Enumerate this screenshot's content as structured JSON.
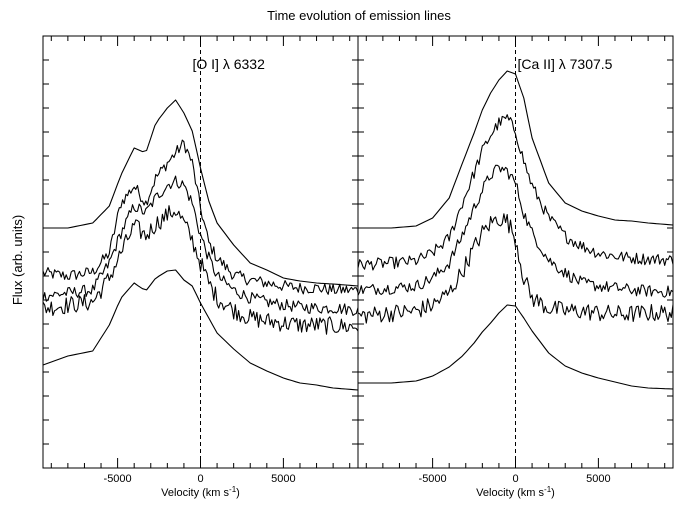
{
  "chart_data": {
    "type": "line",
    "title": "Time evolution of emission lines",
    "ylabel": "Flux (arb. units)",
    "xlabel_prefix": "Velocity (km s",
    "xlabel_sup": "-1",
    "xlabel_suffix": ")",
    "x_tick_values": [
      -5000,
      0,
      5000
    ],
    "x_tick_labels": [
      "-5000",
      "0",
      "5000"
    ],
    "grid": false,
    "panels": [
      {
        "annotation": "[O I] λ 6332",
        "xlim": [
          -9500,
          9500
        ],
        "marker_x": 0,
        "series": [
          {
            "x": [
              -9500,
              -8000,
              -6500,
              -5500,
              -4800,
              -4000,
              -3300,
              -2700,
              -2000,
              -1500,
              -1000,
              -500,
              0,
              500,
              1000,
              2000,
              3000,
              4000,
              5000,
              6000,
              7000,
              8000,
              9500
            ],
            "y": [
              240,
              240,
              245,
              262,
              293,
              320,
              315,
              345,
              360,
              368,
              355,
              337,
              300,
              267,
              245,
              223,
              205,
              198,
              190,
              187,
              185,
              184,
              182
            ]
          },
          {
            "x": [
              -9500,
              -8000,
              -6500,
              -5500,
              -4800,
              -4000,
              -3300,
              -2700,
              -2000,
              -1500,
              -1000,
              -500,
              0,
              500,
              1000,
              2000,
              3000,
              4000,
              5000,
              6000,
              7000,
              8000,
              9500
            ],
            "y": [
              195,
              192,
              196,
              215,
              265,
              282,
              265,
              290,
              305,
              315,
              325,
              305,
              260,
              225,
              210,
              193,
              188,
              185,
              182,
              180,
              180,
              178,
              178
            ]
          },
          {
            "x": [
              -9500,
              -8000,
              -6500,
              -5500,
              -4800,
              -4000,
              -3300,
              -2700,
              -2000,
              -1500,
              -1000,
              -500,
              0,
              500,
              1000,
              2000,
              3000,
              4000,
              5000,
              6000,
              7000,
              8000,
              9500
            ],
            "y": [
              172,
              175,
              178,
              205,
              235,
              262,
              255,
              270,
              283,
              287,
              283,
              265,
              233,
              210,
              192,
              178,
              170,
              166,
              163,
              161,
              160,
              160,
              158
            ]
          },
          {
            "x": [
              -9500,
              -8000,
              -6500,
              -5500,
              -4800,
              -4000,
              -3300,
              -2700,
              -2000,
              -1500,
              -1000,
              -500,
              0,
              500,
              1000,
              2000,
              3000,
              4000,
              5000,
              6000,
              7000,
              8000,
              9500
            ],
            "y": [
              160,
              163,
              166,
              190,
              215,
              242,
              232,
              244,
              253,
              258,
              245,
              228,
              205,
              185,
              170,
              158,
              150,
              147,
              145,
              143,
              143,
              142,
              141
            ]
          },
          {
            "x": [
              -9500,
              -8000,
              -6500,
              -5500,
              -4800,
              -4000,
              -3300,
              -2700,
              -2000,
              -1500,
              -1000,
              -500,
              0,
              500,
              1000,
              2000,
              3000,
              4000,
              5000,
              6000,
              7000,
              8000,
              9500
            ],
            "y": [
              103,
              112,
              117,
              143,
              170,
              185,
              177,
              190,
              197,
              198,
              188,
              182,
              165,
              150,
              135,
              119,
              105,
              97,
              90,
              85,
              83,
              80,
              78
            ]
          }
        ]
      },
      {
        "annotation": "[Ca II] λ 7307.5",
        "xlim": [
          -9500,
          9500
        ],
        "marker_x": 0,
        "series": [
          {
            "x": [
              -9500,
              -7500,
              -6000,
              -5000,
              -4000,
              -3200,
              -2500,
              -2000,
              -1500,
              -1000,
              -500,
              0,
              500,
              1000,
              2000,
              3000,
              4000,
              5000,
              6000,
              7000,
              8000,
              9500
            ],
            "y": [
              240,
              240,
              242,
              250,
              270,
              305,
              335,
              358,
              375,
              388,
              397,
              394,
              370,
              330,
              285,
              265,
              257,
              252,
              248,
              247,
              245,
              243
            ]
          },
          {
            "x": [
              -9500,
              -7500,
              -6000,
              -5000,
              -4000,
              -3200,
              -2500,
              -2000,
              -1500,
              -1000,
              -500,
              0,
              500,
              1000,
              2000,
              3000,
              4000,
              5000,
              6000,
              7000,
              8000,
              9500
            ],
            "y": [
              203,
              205,
              207,
              215,
              230,
              265,
              295,
              317,
              333,
              345,
              350,
              337,
              307,
              282,
              250,
              232,
              222,
              215,
              212,
              210,
              209,
              208
            ]
          },
          {
            "x": [
              -9500,
              -7500,
              -6000,
              -5000,
              -4000,
              -3200,
              -2500,
              -2000,
              -1500,
              -1000,
              -500,
              0,
              500,
              1000,
              2000,
              3000,
              4000,
              5000,
              6000,
              7000,
              8000,
              9500
            ],
            "y": [
              178,
              180,
              182,
              190,
              205,
              233,
              260,
              278,
              293,
              300,
              297,
              285,
              255,
              235,
              208,
              195,
              185,
              182,
              180,
              178,
              177,
              176
            ]
          },
          {
            "x": [
              -9500,
              -7500,
              -6000,
              -5000,
              -4000,
              -3200,
              -2500,
              -2000,
              -1500,
              -1000,
              -500,
              0,
              500,
              1000,
              2000,
              3000,
              4000,
              5000,
              6000,
              7000,
              8000,
              9500
            ],
            "y": [
              152,
              155,
              157,
              163,
              175,
              197,
              220,
              235,
              245,
              250,
              247,
              230,
              190,
              170,
              160,
              157,
              157,
              155,
              154,
              154,
              155,
              155
            ]
          },
          {
            "x": [
              -9500,
              -7500,
              -6000,
              -5000,
              -4000,
              -3200,
              -2500,
              -2000,
              -1500,
              -1000,
              -500,
              0,
              500,
              1000,
              2000,
              3000,
              4000,
              5000,
              6000,
              7000,
              8000,
              9500
            ],
            "y": [
              85,
              85,
              87,
              92,
              101,
              112,
              125,
              136,
              145,
              155,
              163,
              162,
              150,
              137,
              115,
              102,
              95,
              90,
              86,
              82,
              80,
              79
            ]
          }
        ]
      }
    ]
  }
}
